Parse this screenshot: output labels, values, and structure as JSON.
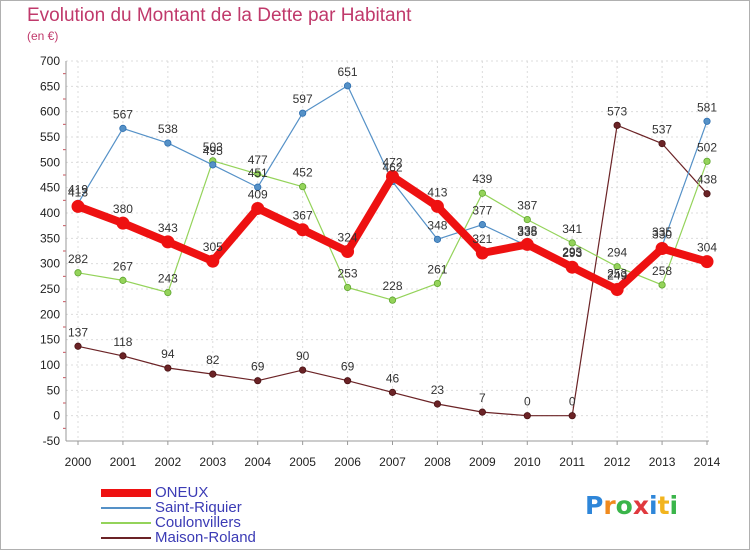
{
  "title": "Evolution du Montant de la Dette par Habitant",
  "subtitle": "(en €)",
  "logo": {
    "text": "Proxiti",
    "letters": [
      "P",
      "r",
      "o",
      "x",
      "i",
      "t",
      "i"
    ],
    "colors": [
      "#2e86d9",
      "#f08a1e",
      "#3ab54a",
      "#e0393e",
      "#2e86d9",
      "#f2b41e",
      "#3ab54a"
    ]
  },
  "chart_data": {
    "type": "line",
    "x": [
      "2000",
      "2001",
      "2002",
      "2003",
      "2004",
      "2005",
      "2006",
      "2007",
      "2008",
      "2009",
      "2010",
      "2011",
      "2012",
      "2013",
      "2014"
    ],
    "ylim": [
      -50,
      700
    ],
    "yticks": [
      "-50",
      "0",
      "50",
      "100",
      "150",
      "200",
      "250",
      "300",
      "350",
      "400",
      "450",
      "500",
      "550",
      "600",
      "650",
      "700"
    ],
    "grid": true,
    "legend_position": "bottom-left",
    "series": [
      {
        "name": "ONEUX",
        "color": "#ee1111",
        "values": [
          413,
          380,
          343,
          305,
          409,
          367,
          324,
          472,
          413,
          321,
          338,
          293,
          249,
          330,
          304
        ],
        "labels": [
          "413",
          "380",
          "343",
          "305",
          "409",
          "367",
          "324",
          "472",
          "413",
          "321",
          "338",
          "293",
          "249",
          "330",
          "304"
        ]
      },
      {
        "name": "Saint-Riquier",
        "color": "#5591c7",
        "values": [
          419,
          567,
          538,
          495,
          451,
          597,
          651,
          462,
          348,
          377,
          335,
          295,
          253,
          335,
          581
        ],
        "labels": [
          "419",
          "567",
          "538",
          "495",
          "451",
          "597",
          "651",
          "462",
          "348",
          "377",
          "335",
          "295",
          "253",
          "335",
          "581"
        ]
      },
      {
        "name": "Coulonvillers",
        "color": "#94d35a",
        "values": [
          282,
          267,
          243,
          503,
          477,
          452,
          253,
          228,
          261,
          439,
          387,
          341,
          294,
          258,
          502
        ],
        "labels": [
          "282",
          "267",
          "243",
          "503",
          "477",
          "452",
          "253",
          "228",
          "261",
          "439",
          "387",
          "341",
          "294",
          "258",
          "502"
        ]
      },
      {
        "name": "Maison-Roland",
        "color": "#6b2326",
        "values": [
          137,
          118,
          94,
          82,
          69,
          90,
          69,
          46,
          23,
          7,
          0,
          0,
          573,
          537,
          438
        ],
        "labels": [
          "137",
          "118",
          "94",
          "82",
          "69",
          "90",
          "69",
          "46",
          "23",
          "7",
          "0",
          "0",
          "573",
          "537",
          "438"
        ]
      }
    ]
  }
}
